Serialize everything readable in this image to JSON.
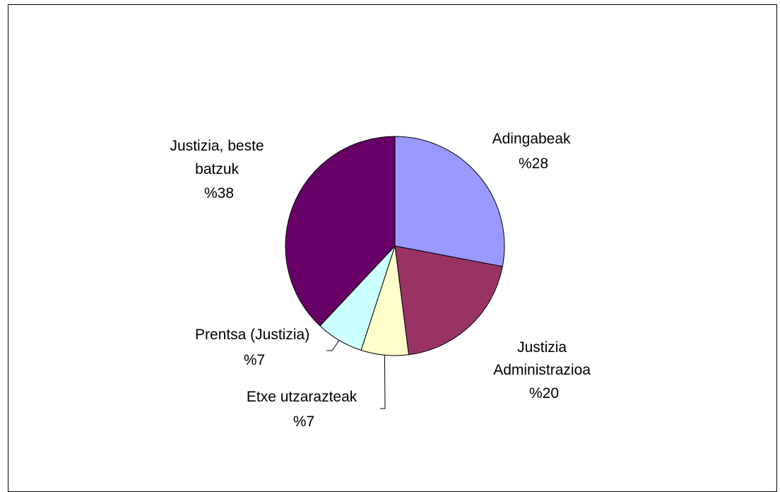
{
  "chart_data": {
    "type": "pie",
    "title": "",
    "legend": "none",
    "slices": [
      {
        "name": "Adingabeak",
        "label_lines": [
          "Adingabeak"
        ],
        "value": 28,
        "value_label": "%28",
        "color": "#9999FF"
      },
      {
        "name": "Justizia Administrazioa",
        "label_lines": [
          "Justizia",
          "Administrazioa"
        ],
        "value": 20,
        "value_label": "%20",
        "color": "#993366"
      },
      {
        "name": "Etxe utzarazteak",
        "label_lines": [
          "Etxe utzarazteak"
        ],
        "value": 7,
        "value_label": "%7",
        "color": "#FFFFCC"
      },
      {
        "name": "Prentsa (Justizia)",
        "label_lines": [
          "Prentsa (Justizia)"
        ],
        "value": 7,
        "value_label": "%7",
        "color": "#CCFFFF"
      },
      {
        "name": "Justizia, beste batzuk",
        "label_lines": [
          "Justizia, beste",
          "batzuk"
        ],
        "value": 38,
        "value_label": "%38",
        "color": "#660066"
      }
    ]
  }
}
